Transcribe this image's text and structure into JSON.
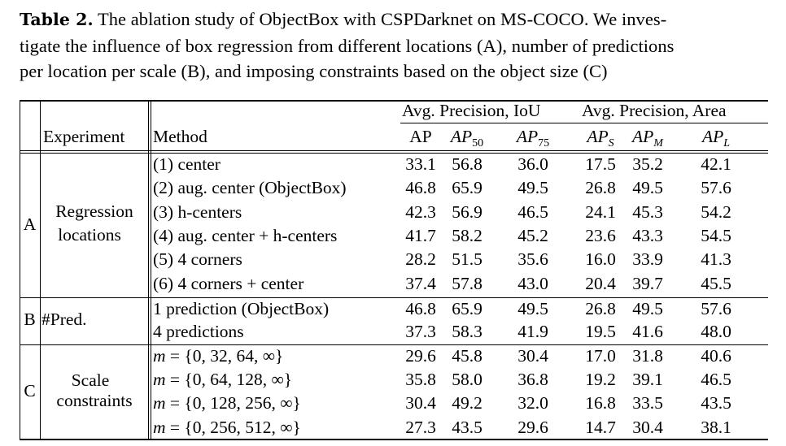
{
  "caption": {
    "label": "Table 2.",
    "line1": " The ablation study of ObjectBox with CSPDarknet on MS-COCO. We inves-",
    "line2": "tigate the influence of box regression from different locations (A), number of predictions",
    "line3": "per location per scale (B), and imposing constraints based on the object size (C)"
  },
  "header": {
    "group_iou": "Avg. Precision, IoU",
    "group_area": "Avg. Precision, Area",
    "experiment": "Experiment",
    "method": "Method",
    "ap": "AP",
    "ap50_base": "AP",
    "ap50_sub": "50",
    "ap75_base": "AP",
    "ap75_sub": "75",
    "aps_base": "AP",
    "aps_sub": "S",
    "apm_base": "AP",
    "apm_sub": "M",
    "apl_base": "AP",
    "apl_sub": "L"
  },
  "groups": [
    {
      "id": "A",
      "label_line1": "Regression",
      "label_line2": "locations"
    },
    {
      "id": "B",
      "label_line1": "#Pred.",
      "label_line2": ""
    },
    {
      "id": "C",
      "label_line1": "Scale",
      "label_line2": "constraints"
    }
  ],
  "rows": [
    {
      "method": "(1) center",
      "ap": "33.1",
      "ap50": "56.8",
      "ap75": "36.0",
      "aps": "17.5",
      "apm": "35.2",
      "apl": "42.1"
    },
    {
      "method": "(2) aug. center (ObjectBox)",
      "ap": "46.8",
      "ap50": "65.9",
      "ap75": "49.5",
      "aps": "26.8",
      "apm": "49.5",
      "apl": "57.6"
    },
    {
      "method": "(3) h-centers",
      "ap": "42.3",
      "ap50": "56.9",
      "ap75": "46.5",
      "aps": "24.1",
      "apm": "45.3",
      "apl": "54.2"
    },
    {
      "method": "(4) aug. center + h-centers",
      "ap": "41.7",
      "ap50": "58.2",
      "ap75": "45.2",
      "aps": "23.6",
      "apm": "43.3",
      "apl": "54.5"
    },
    {
      "method": "(5) 4 corners",
      "ap": "28.2",
      "ap50": "51.5",
      "ap75": "35.6",
      "aps": "16.0",
      "apm": "33.9",
      "apl": "41.3"
    },
    {
      "method": "(6) 4 corners + center",
      "ap": "37.4",
      "ap50": "57.8",
      "ap75": "43.0",
      "aps": "20.4",
      "apm": "39.7",
      "apl": "45.5"
    },
    {
      "method": "1 prediction (ObjectBox)",
      "ap": "46.8",
      "ap50": "65.9",
      "ap75": "49.5",
      "aps": "26.8",
      "apm": "49.5",
      "apl": "57.6"
    },
    {
      "method": "4 predictions",
      "ap": "37.3",
      "ap50": "58.3",
      "ap75": "41.9",
      "aps": "19.5",
      "apm": "41.6",
      "apl": "48.0"
    },
    {
      "method": "m = {0, 32, 64, ∞}",
      "ap": "29.6",
      "ap50": "45.8",
      "ap75": "30.4",
      "aps": "17.0",
      "apm": "31.8",
      "apl": "40.6"
    },
    {
      "method": "m = {0, 64, 128, ∞}",
      "ap": "35.8",
      "ap50": "58.0",
      "ap75": "36.8",
      "aps": "19.2",
      "apm": "39.1",
      "apl": "46.5"
    },
    {
      "method": "m = {0, 128, 256, ∞}",
      "ap": "30.4",
      "ap50": "49.2",
      "ap75": "32.0",
      "aps": "16.8",
      "apm": "33.5",
      "apl": "43.5"
    },
    {
      "method": "m = {0, 256, 512, ∞}",
      "ap": "27.3",
      "ap50": "43.5",
      "ap75": "29.6",
      "aps": "14.7",
      "apm": "30.4",
      "apl": "38.1"
    }
  ]
}
